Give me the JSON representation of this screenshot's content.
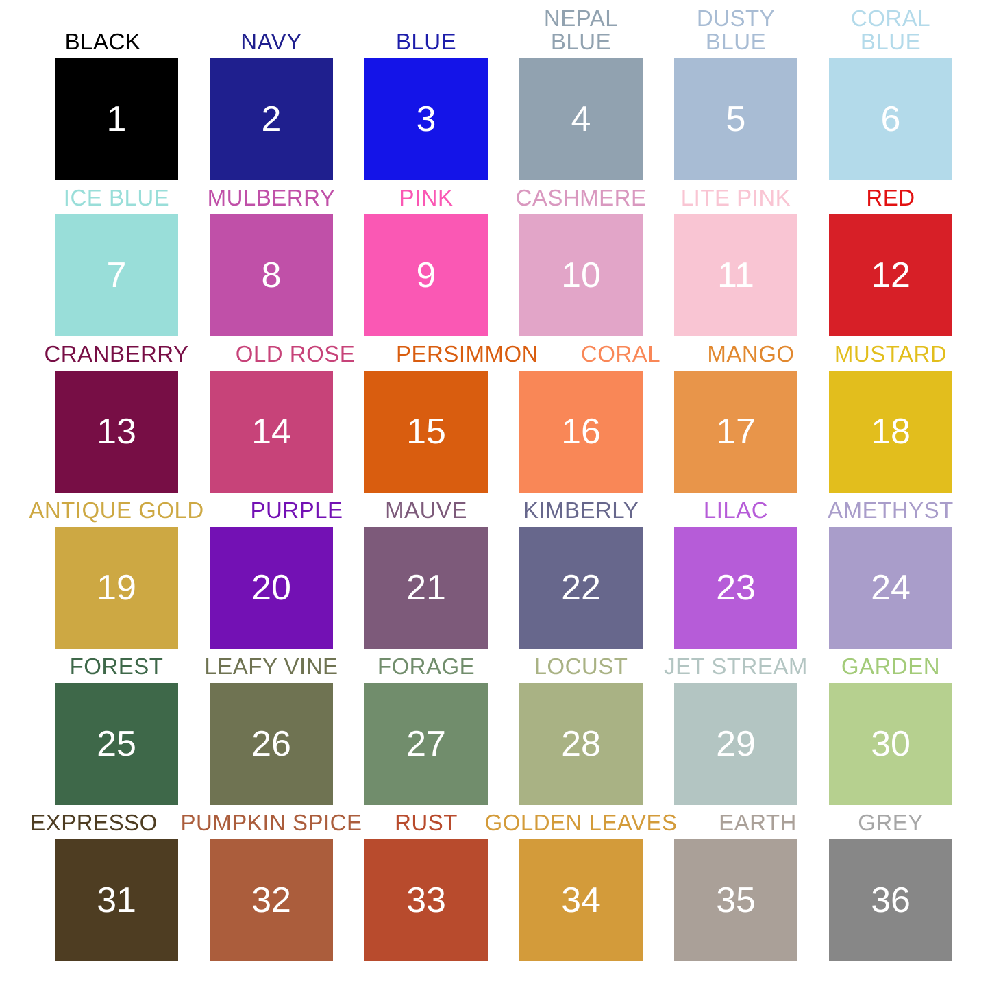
{
  "page": {
    "background": "#ffffff",
    "number_text_color": "#ffffff",
    "grid": {
      "rows": 6,
      "columns": 6
    }
  },
  "swatches": [
    {
      "number": "1",
      "name": "BLACK",
      "label": "BLACK",
      "color": "#000000",
      "label_color": "#000000"
    },
    {
      "number": "2",
      "name": "NAVY",
      "label": "NAVY",
      "color": "#1f1f8e",
      "label_color": "#1f1f8e"
    },
    {
      "number": "3",
      "name": "BLUE",
      "label": "BLUE",
      "color": "#1414e8",
      "label_color": "#1d1daa"
    },
    {
      "number": "4",
      "name": "NEPAL BLUE",
      "label": "NEPAL\nBLUE",
      "color": "#91a2b0",
      "label_color": "#91a2b0"
    },
    {
      "number": "5",
      "name": "DUSTY BLUE",
      "label": "DUSTY\nBLUE",
      "color": "#a8bcd4",
      "label_color": "#a8bcd4"
    },
    {
      "number": "6",
      "name": "CORAL BLUE",
      "label": "CORAL\nBLUE",
      "color": "#b3daea",
      "label_color": "#b3daea"
    },
    {
      "number": "7",
      "name": "ICE BLUE",
      "label": "ICE BLUE",
      "color": "#99ded9",
      "label_color": "#99ded9"
    },
    {
      "number": "8",
      "name": "MULBERRY",
      "label": "MULBERRY",
      "color": "#c050a8",
      "label_color": "#c050a8"
    },
    {
      "number": "9",
      "name": "PINK",
      "label": "PINK",
      "color": "#fa58b4",
      "label_color": "#fa58b4"
    },
    {
      "number": "10",
      "name": "CASHMERE",
      "label": "CASHMERE",
      "color": "#e2a5c8",
      "label_color": "#d998bf"
    },
    {
      "number": "11",
      "name": "LITE PINK",
      "label": "LITE PINK",
      "color": "#f9c5d3",
      "label_color": "#f9c5d3"
    },
    {
      "number": "12",
      "name": "RED",
      "label": "RED",
      "color": "#d71f27",
      "label_color": "#e21111"
    },
    {
      "number": "13",
      "name": "CRANBERRY",
      "label": "CRANBERRY",
      "color": "#770e45",
      "label_color": "#770e45"
    },
    {
      "number": "14",
      "name": "OLD ROSE",
      "label": "OLD ROSE",
      "color": "#c74379",
      "label_color": "#c74379"
    },
    {
      "number": "15",
      "name": "PERSIMMON",
      "label": "PERSIMMON",
      "color": "#d95d0f",
      "label_color": "#d95d0f"
    },
    {
      "number": "16",
      "name": "CORAL",
      "label": "CORAL",
      "color": "#f98757",
      "label_color": "#f98757"
    },
    {
      "number": "17",
      "name": "MANGO",
      "label": "MANGO",
      "color": "#e8954a",
      "label_color": "#e1882f"
    },
    {
      "number": "18",
      "name": "MUSTARD",
      "label": "MUSTARD",
      "color": "#e2be1d",
      "label_color": "#e2be1d"
    },
    {
      "number": "19",
      "name": "ANTIQUE GOLD",
      "label": "ANTIQUE GOLD",
      "color": "#cda843",
      "label_color": "#cda843"
    },
    {
      "number": "20",
      "name": "PURPLE",
      "label": "PURPLE",
      "color": "#7311b4",
      "label_color": "#7311b4"
    },
    {
      "number": "21",
      "name": "MAUVE",
      "label": "MAUVE",
      "color": "#7d5a7a",
      "label_color": "#7d5a7a"
    },
    {
      "number": "22",
      "name": "KIMBERLY",
      "label": "KIMBERLY",
      "color": "#67678c",
      "label_color": "#67678c"
    },
    {
      "number": "23",
      "name": "LILAC",
      "label": "LILAC",
      "color": "#b65cd8",
      "label_color": "#b65cd8"
    },
    {
      "number": "24",
      "name": "AMETHYST",
      "label": "AMETHYST",
      "color": "#a99dca",
      "label_color": "#a99dca"
    },
    {
      "number": "25",
      "name": "FOREST",
      "label": "FOREST",
      "color": "#3e6849",
      "label_color": "#3e6849"
    },
    {
      "number": "26",
      "name": "LEAFY VINE",
      "label": "LEAFY VINE",
      "color": "#6f7352",
      "label_color": "#6f7352"
    },
    {
      "number": "27",
      "name": "FORAGE",
      "label": "FORAGE",
      "color": "#718d6c",
      "label_color": "#718d6c"
    },
    {
      "number": "28",
      "name": "LOCUST",
      "label": "LOCUST",
      "color": "#a9b284",
      "label_color": "#a9b284"
    },
    {
      "number": "29",
      "name": "JET STREAM",
      "label": "JET STREAM",
      "color": "#b3c5c2",
      "label_color": "#b3c5c2"
    },
    {
      "number": "30",
      "name": "GARDEN",
      "label": "GARDEN",
      "color": "#b6d08f",
      "label_color": "#a3cb79"
    },
    {
      "number": "31",
      "name": "EXPRESSO",
      "label": "EXPRESSO",
      "color": "#4e3d22",
      "label_color": "#4e3d22"
    },
    {
      "number": "32",
      "name": "PUMPKIN SPICE",
      "label": "PUMPKIN SPICE",
      "color": "#ab5d3c",
      "label_color": "#ab5d3c"
    },
    {
      "number": "33",
      "name": "RUST",
      "label": "RUST",
      "color": "#b84b2d",
      "label_color": "#b84b2d"
    },
    {
      "number": "34",
      "name": "GOLDEN LEAVES",
      "label": "GOLDEN LEAVES",
      "color": "#d39b3a",
      "label_color": "#d39b3a"
    },
    {
      "number": "35",
      "name": "EARTH",
      "label": "EARTH",
      "color": "#aaa098",
      "label_color": "#aaa098"
    },
    {
      "number": "36",
      "name": "GREY",
      "label": "GREY",
      "color": "#878787",
      "label_color": "#a6a6a6"
    }
  ]
}
